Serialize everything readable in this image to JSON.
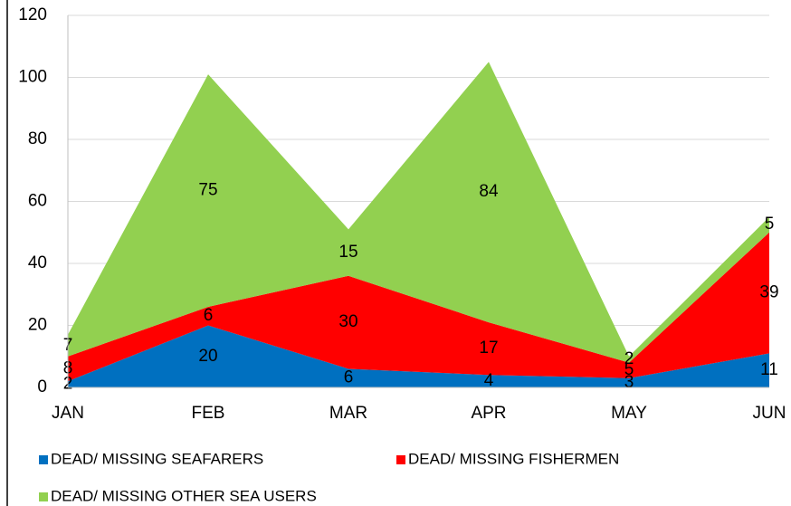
{
  "chart_data": {
    "type": "area",
    "stacked": true,
    "categories": [
      "JAN",
      "FEB",
      "MAR",
      "APR",
      "MAY",
      "JUN"
    ],
    "series": [
      {
        "name": "DEAD/ MISSING SEAFARERS",
        "color": "#0070c0",
        "values": [
          2,
          20,
          6,
          4,
          3,
          11
        ]
      },
      {
        "name": "DEAD/ MISSING FISHERMEN",
        "color": "#ff0000",
        "values": [
          8,
          6,
          30,
          17,
          5,
          39
        ]
      },
      {
        "name": "DEAD/ MISSING OTHER SEA USERS",
        "color": "#92d050",
        "values": [
          7,
          75,
          15,
          84,
          2,
          5
        ]
      }
    ],
    "ylim": [
      0,
      120
    ],
    "yticks": [
      0,
      20,
      40,
      60,
      80,
      100,
      120
    ],
    "grid": true,
    "legend": "bottom"
  }
}
